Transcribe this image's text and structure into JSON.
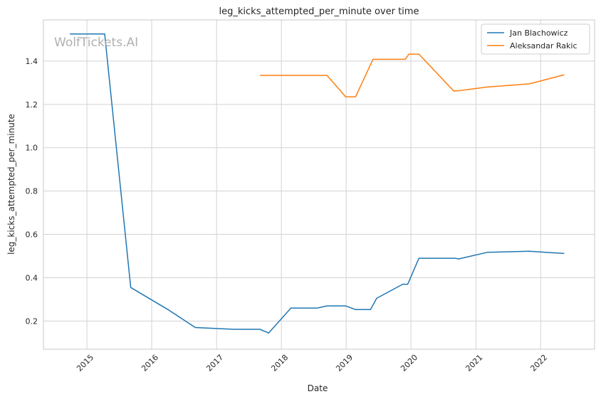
{
  "watermark": "WolfTickets.AI",
  "chart_data": {
    "type": "line",
    "title": "leg_kicks_attempted_per_minute over time",
    "xlabel": "Date",
    "ylabel": "leg_kicks_attempted_per_minute",
    "ylim": [
      0.07,
      1.59
    ],
    "xlim": [
      "2014-05-01",
      "2022-11-01"
    ],
    "x_ticks": [
      "2015",
      "2016",
      "2017",
      "2018",
      "2019",
      "2020",
      "2021",
      "2022"
    ],
    "y_ticks": [
      "0.2",
      "0.4",
      "0.6",
      "0.8",
      "1.0",
      "1.2",
      "1.4"
    ],
    "grid": true,
    "legend_position": "top-right",
    "colors": {
      "Jan Blachowicz": "#1f77b4",
      "Aleksandar Rakic": "#ff7f0e",
      "grid": "#d3d3d3",
      "spine": "#c8c8c8"
    },
    "series": [
      {
        "name": "Jan Blachowicz",
        "points": [
          [
            "2014-09-27",
            1.525
          ],
          [
            "2015-04-11",
            1.525
          ],
          [
            "2015-09-05",
            0.355
          ],
          [
            "2016-04-08",
            0.25
          ],
          [
            "2016-09-03",
            0.17
          ],
          [
            "2017-04-08",
            0.162
          ],
          [
            "2017-09-02",
            0.162
          ],
          [
            "2017-10-21",
            0.145
          ],
          [
            "2018-02-24",
            0.26
          ],
          [
            "2018-07-22",
            0.26
          ],
          [
            "2018-09-15",
            0.27
          ],
          [
            "2018-12-29",
            0.27
          ],
          [
            "2019-02-23",
            0.253
          ],
          [
            "2019-05-18",
            0.253
          ],
          [
            "2019-06-22",
            0.305
          ],
          [
            "2019-11-16",
            0.37
          ],
          [
            "2019-12-14",
            0.37
          ],
          [
            "2020-02-15",
            0.49
          ],
          [
            "2020-09-05",
            0.49
          ],
          [
            "2020-09-27",
            0.487
          ],
          [
            "2021-03-06",
            0.517
          ],
          [
            "2021-10-30",
            0.522
          ],
          [
            "2022-05-14",
            0.512
          ]
        ]
      },
      {
        "name": "Aleksandar Rakic",
        "points": [
          [
            "2017-09-02",
            1.334
          ],
          [
            "2018-09-15",
            1.334
          ],
          [
            "2018-12-29",
            1.235
          ],
          [
            "2019-02-23",
            1.235
          ],
          [
            "2019-06-01",
            1.408
          ],
          [
            "2019-11-30",
            1.408
          ],
          [
            "2019-12-21",
            1.432
          ],
          [
            "2020-02-15",
            1.432
          ],
          [
            "2020-08-29",
            1.262
          ],
          [
            "2020-09-25",
            1.263
          ],
          [
            "2021-03-06",
            1.28
          ],
          [
            "2021-10-30",
            1.295
          ],
          [
            "2022-05-14",
            1.337
          ]
        ]
      }
    ]
  }
}
